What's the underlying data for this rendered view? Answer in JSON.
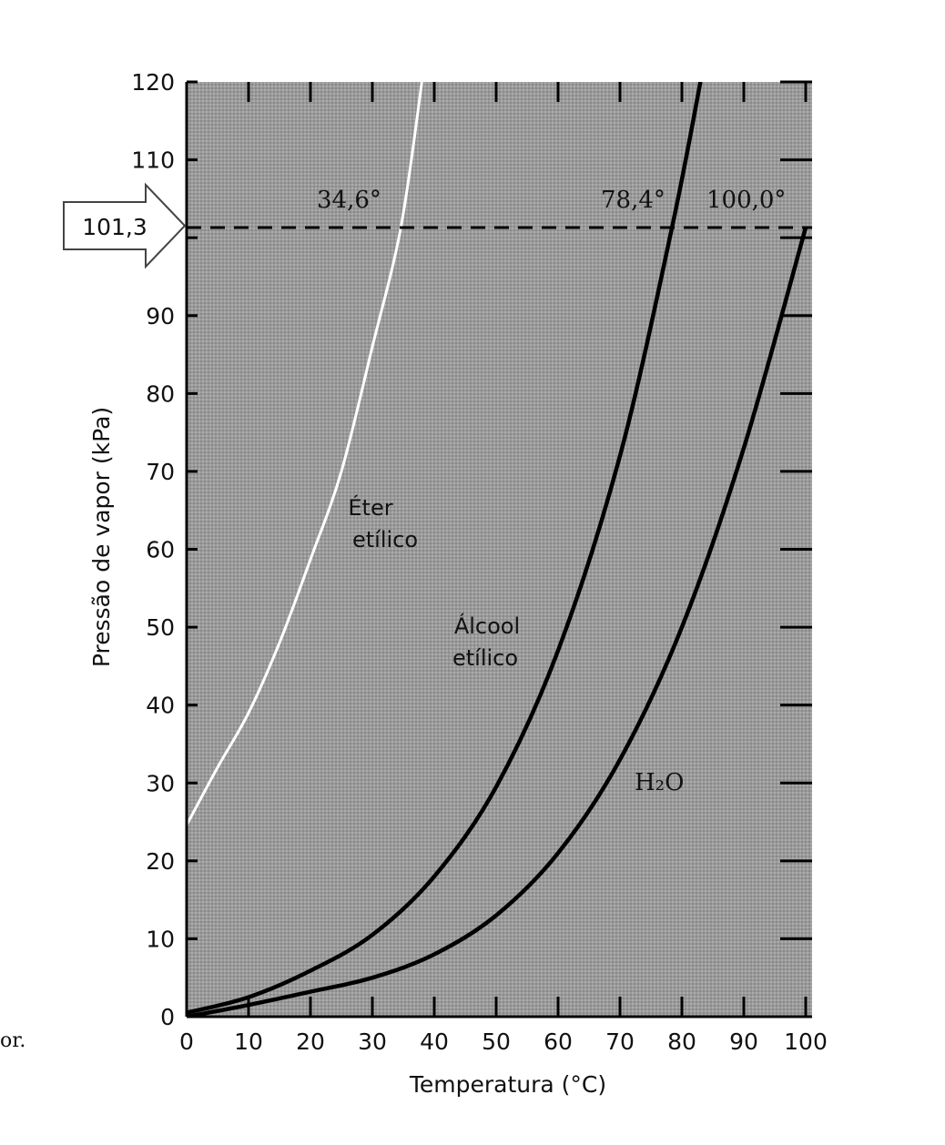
{
  "chart_data": {
    "type": "line",
    "title": "",
    "xlabel": "Temperatura (°C)",
    "ylabel": "Pressão de vapor (kPa)",
    "xlim": [
      0,
      100
    ],
    "ylim": [
      0,
      120
    ],
    "x_ticks": [
      "0",
      "10",
      "20",
      "30",
      "40",
      "50",
      "60",
      "70",
      "80",
      "90",
      "100"
    ],
    "y_ticks": [
      "0",
      "10",
      "20",
      "30",
      "40",
      "50",
      "60",
      "70",
      "80",
      "90",
      "110",
      "120"
    ],
    "grid": false,
    "background": "#a9a9a9",
    "series": [
      {
        "name": "Éter etílico",
        "name_line1": "Éter",
        "name_line2": "etílico",
        "color": "#ffffff",
        "x": [
          0,
          5,
          10,
          15,
          20,
          25,
          30,
          34.6,
          38
        ],
        "y": [
          24.6,
          32.0,
          39.0,
          48.0,
          58.7,
          70.0,
          86.0,
          101.3,
          120.0
        ]
      },
      {
        "name": "Álcool etílico",
        "name_line1": "Álcool",
        "name_line2": "etílico",
        "color": "#000000",
        "x": [
          0,
          10,
          20,
          30,
          40,
          50,
          60,
          70,
          78.4,
          83
        ],
        "y": [
          0.5,
          2.5,
          5.9,
          10.5,
          18.0,
          29.5,
          47.0,
          72.0,
          101.3,
          120.0
        ]
      },
      {
        "name": "H₂O",
        "color": "#000000",
        "x": [
          0,
          10,
          20,
          30,
          40,
          50,
          60,
          70,
          80,
          90,
          100
        ],
        "y": [
          0.0,
          1.5,
          3.2,
          5.0,
          8.0,
          13.0,
          21.0,
          33.0,
          50.0,
          73.0,
          101.3
        ]
      }
    ],
    "reference_line": {
      "y": 101.3,
      "label": "101,3",
      "style": "dashed"
    },
    "annotations": [
      {
        "text": "34,6°",
        "x": 34.6,
        "y": 101.3
      },
      {
        "text": "78,4°",
        "x": 78.4,
        "y": 101.3
      },
      {
        "text": "100,0°",
        "x": 100,
        "y": 101.3
      }
    ]
  },
  "stray_text": "or."
}
